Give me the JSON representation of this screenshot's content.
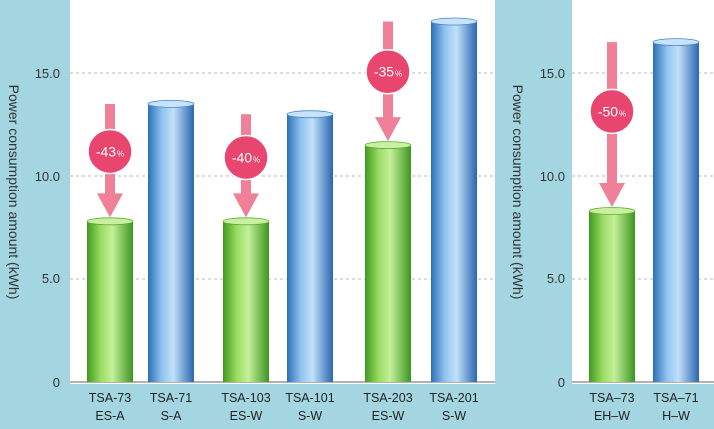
{
  "chart_data": [
    {
      "type": "bar",
      "ylabel": "Power consumption amount (kWh)",
      "ylim": [
        0,
        18
      ],
      "yticks": [
        "0",
        "5.0",
        "10.0",
        "15.0"
      ],
      "grid": true,
      "categories": [
        {
          "line1": "TSA-73",
          "line2": "ES-A"
        },
        {
          "line1": "TSA-71",
          "line2": "S-A"
        },
        {
          "line1": "TSA-103",
          "line2": "ES-W"
        },
        {
          "line1": "TSA-101",
          "line2": "S-W"
        },
        {
          "line1": "TSA-203",
          "line2": "ES-W"
        },
        {
          "line1": "TSA-201",
          "line2": "S-W"
        }
      ],
      "values": [
        7.8,
        13.5,
        7.8,
        13.0,
        11.5,
        17.5
      ],
      "bar_colors": [
        "green",
        "blue",
        "green",
        "blue",
        "green",
        "blue"
      ],
      "annotations": [
        {
          "value": "-43",
          "unit": "%",
          "from_category": 1,
          "to_category": 0
        },
        {
          "value": "-40",
          "unit": "%",
          "from_category": 3,
          "to_category": 2
        },
        {
          "value": "-35",
          "unit": "%",
          "from_category": 5,
          "to_category": 4
        }
      ]
    },
    {
      "type": "bar",
      "ylabel": "Power consumption amount (kWh)",
      "ylim": [
        0,
        18
      ],
      "yticks": [
        "0",
        "5.0",
        "10.0",
        "15.0"
      ],
      "grid": true,
      "categories": [
        {
          "line1": "TSA–73",
          "line2": "EH–W"
        },
        {
          "line1": "TSA–71",
          "line2": "H–W"
        }
      ],
      "values": [
        8.3,
        16.5
      ],
      "bar_colors": [
        "green",
        "blue"
      ],
      "annotations": [
        {
          "value": "-50",
          "unit": "%",
          "from_category": 1,
          "to_category": 0
        }
      ]
    }
  ]
}
